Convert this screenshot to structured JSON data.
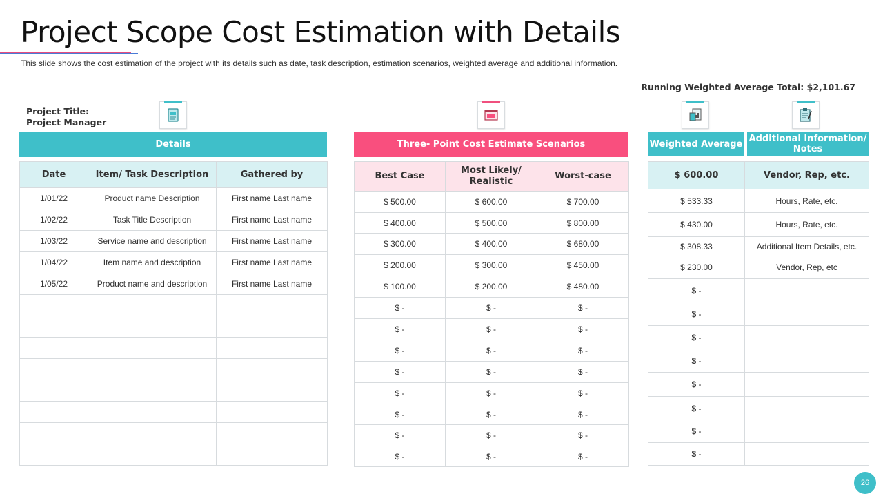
{
  "header": {
    "title": "Project Scope Cost Estimation with Details",
    "subtitle": "This slide shows the cost estimation of the project with its details such as date, task description, estimation scenarios, weighted average and additional information.",
    "running_total": "Running Weighted Average Total: $2,101.67",
    "project_title_label": "Project Title:",
    "project_manager_label": "Project Manager"
  },
  "icons": {
    "details": "document-icon",
    "scenarios": "window-icon",
    "weighted": "chart-document-icon",
    "notes": "clipboard-icon"
  },
  "details": {
    "section_label": "Details",
    "columns": [
      "Date",
      "Item/ Task Description",
      "Gathered by"
    ],
    "rows": [
      [
        "1/01/22",
        "Product name Description",
        "First name Last name"
      ],
      [
        "1/02/22",
        "Task Title Description",
        "First name Last name"
      ],
      [
        "1/03/22",
        "Service name and description",
        "First name Last name"
      ],
      [
        "1/04/22",
        "Item name and description",
        "First name Last name"
      ],
      [
        "1/05/22",
        "Product name and description",
        "First name Last name"
      ],
      [
        "",
        "",
        ""
      ],
      [
        "",
        "",
        ""
      ],
      [
        "",
        "",
        ""
      ],
      [
        "",
        "",
        ""
      ],
      [
        "",
        "",
        ""
      ],
      [
        "",
        "",
        ""
      ],
      [
        "",
        "",
        ""
      ],
      [
        "",
        "",
        ""
      ]
    ]
  },
  "scenarios": {
    "section_label": "Three- Point Cost Estimate Scenarios",
    "columns": [
      "Best Case",
      "Most Likely/ Realistic",
      "Worst-case"
    ],
    "rows": [
      [
        "$ 500.00",
        "$ 600.00",
        "$ 700.00"
      ],
      [
        "$ 400.00",
        "$ 500.00",
        "$ 800.00"
      ],
      [
        "$ 300.00",
        "$ 400.00",
        "$ 680.00"
      ],
      [
        "$ 200.00",
        "$ 300.00",
        "$ 450.00"
      ],
      [
        "$ 100.00",
        "$ 200.00",
        "$ 480.00"
      ],
      [
        "$ -",
        "$ -",
        "$ -"
      ],
      [
        "$ -",
        "$ -",
        "$ -"
      ],
      [
        "$ -",
        "$ -",
        "$ -"
      ],
      [
        "$ -",
        "$ -",
        "$ -"
      ],
      [
        "$ -",
        "$ -",
        "$ -"
      ],
      [
        "$ -",
        "$ -",
        "$ -"
      ],
      [
        "$ -",
        "$ -",
        "$ -"
      ],
      [
        "$ -",
        "$ -",
        "$ -"
      ]
    ]
  },
  "weighted": {
    "section_label_avg": "Weighted Average",
    "section_label_notes": "Additional Information/ Notes",
    "header_row": [
      "$ 600.00",
      "Vendor, Rep, etc."
    ],
    "rows": [
      [
        "$ 533.33",
        "Hours, Rate, etc."
      ],
      [
        "$ 430.00",
        "Hours, Rate, etc."
      ],
      [
        "$ 308.33",
        "Additional Item Details, etc."
      ],
      [
        "$ 230.00",
        "Vendor, Rep, etc"
      ],
      [
        "$ -",
        ""
      ],
      [
        "$ -",
        ""
      ],
      [
        "$ -",
        ""
      ],
      [
        "$ -",
        ""
      ],
      [
        "$ -",
        ""
      ],
      [
        "$ -",
        ""
      ],
      [
        "$ -",
        ""
      ],
      [
        "$ -",
        ""
      ]
    ]
  },
  "footer": {
    "page_number": "26"
  },
  "colors": {
    "teal": "#3fbfc9",
    "pink": "#f94f7e",
    "teal_light": "#d8f1f3",
    "pink_light": "#fde3ea"
  }
}
